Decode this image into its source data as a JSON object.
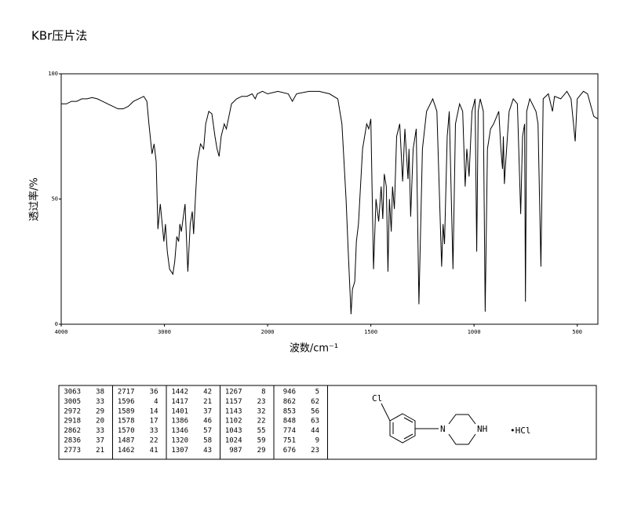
{
  "chart_data": {
    "type": "line",
    "title": "KBr压片法",
    "xlabel": "波数/cm⁻¹",
    "ylabel": "透过率/%",
    "color": "#000000",
    "xlim": [
      4000,
      400
    ],
    "ylim": [
      0,
      100
    ],
    "xticks": [
      4000,
      3000,
      2000,
      1500,
      1000,
      500
    ],
    "yticks": [
      0,
      50,
      100
    ],
    "x": [
      4000,
      3950,
      3900,
      3850,
      3800,
      3750,
      3700,
      3650,
      3600,
      3550,
      3500,
      3450,
      3400,
      3350,
      3300,
      3250,
      3200,
      3170,
      3150,
      3120,
      3100,
      3080,
      3063,
      3040,
      3005,
      2990,
      2972,
      2950,
      2918,
      2900,
      2880,
      2862,
      2850,
      2836,
      2800,
      2773,
      2750,
      2730,
      2717,
      2700,
      2680,
      2650,
      2620,
      2600,
      2570,
      2540,
      2510,
      2490,
      2470,
      2450,
      2420,
      2400,
      2350,
      2300,
      2250,
      2200,
      2150,
      2120,
      2100,
      2050,
      2000,
      1950,
      1900,
      1880,
      1860,
      1800,
      1750,
      1700,
      1660,
      1640,
      1620,
      1610,
      1596,
      1589,
      1578,
      1570,
      1560,
      1540,
      1520,
      1510,
      1500,
      1487,
      1475,
      1462,
      1450,
      1442,
      1435,
      1425,
      1417,
      1410,
      1401,
      1395,
      1386,
      1375,
      1360,
      1346,
      1335,
      1320,
      1315,
      1307,
      1295,
      1280,
      1267,
      1250,
      1230,
      1200,
      1180,
      1157,
      1150,
      1143,
      1130,
      1120,
      1102,
      1090,
      1070,
      1055,
      1043,
      1035,
      1024,
      1010,
      995,
      987,
      980,
      970,
      955,
      946,
      935,
      920,
      905,
      880,
      870,
      862,
      858,
      853,
      848,
      830,
      810,
      790,
      774,
      765,
      755,
      751,
      745,
      730,
      700,
      690,
      676,
      665,
      640,
      620,
      610,
      580,
      550,
      530,
      510,
      500,
      470,
      450,
      420,
      400
    ],
    "values": [
      88,
      88,
      89,
      89,
      90,
      90,
      90.5,
      90,
      89,
      88,
      87,
      86,
      86,
      87,
      89,
      90,
      91,
      89,
      80,
      68,
      72,
      65,
      38,
      48,
      33,
      40,
      29,
      22,
      20,
      25,
      35,
      33,
      40,
      37,
      48,
      21,
      40,
      45,
      36,
      50,
      65,
      72,
      70,
      80,
      85,
      84,
      75,
      70,
      67,
      75,
      80,
      78,
      88,
      90,
      91,
      91,
      92,
      90,
      92,
      93,
      92,
      93,
      92,
      89,
      92,
      93,
      93,
      92,
      90,
      80,
      50,
      30,
      4,
      14,
      17,
      33,
      40,
      70,
      80,
      78,
      82,
      22,
      50,
      41,
      55,
      42,
      60,
      55,
      21,
      50,
      37,
      55,
      46,
      75,
      80,
      57,
      78,
      58,
      70,
      43,
      70,
      78,
      8,
      70,
      85,
      90,
      85,
      23,
      40,
      32,
      75,
      85,
      22,
      80,
      88,
      85,
      55,
      70,
      59,
      85,
      90,
      29,
      85,
      90,
      85,
      5,
      70,
      78,
      80,
      85,
      70,
      62,
      75,
      56,
      63,
      85,
      90,
      88,
      44,
      75,
      80,
      9,
      85,
      90,
      85,
      80,
      23,
      90,
      92,
      85,
      91,
      90,
      93,
      90,
      73,
      90,
      93,
      92,
      83,
      82
    ]
  },
  "peak_table": {
    "rows": [
      [
        3063,
        38
      ],
      [
        3005,
        33
      ],
      [
        2972,
        29
      ],
      [
        2918,
        20
      ],
      [
        2862,
        33
      ],
      [
        2836,
        37
      ],
      [
        2773,
        21
      ],
      [
        2717,
        36
      ],
      [
        1596,
        4
      ],
      [
        1589,
        14
      ],
      [
        1578,
        17
      ],
      [
        1570,
        33
      ],
      [
        1487,
        22
      ],
      [
        1462,
        41
      ],
      [
        1442,
        42
      ],
      [
        1417,
        21
      ],
      [
        1401,
        37
      ],
      [
        1386,
        46
      ],
      [
        1346,
        57
      ],
      [
        1320,
        58
      ],
      [
        1307,
        43
      ],
      [
        1267,
        8
      ],
      [
        1157,
        23
      ],
      [
        1143,
        32
      ],
      [
        1102,
        22
      ],
      [
        1043,
        55
      ],
      [
        1024,
        59
      ],
      [
        987,
        29
      ],
      [
        946,
        5
      ],
      [
        862,
        62
      ],
      [
        853,
        56
      ],
      [
        848,
        63
      ],
      [
        774,
        44
      ],
      [
        751,
        9
      ],
      [
        676,
        23
      ]
    ]
  },
  "structure": {
    "substituent": "Cl",
    "amine_n": "N",
    "ring_nh": "NH",
    "salt": "•HCl"
  }
}
